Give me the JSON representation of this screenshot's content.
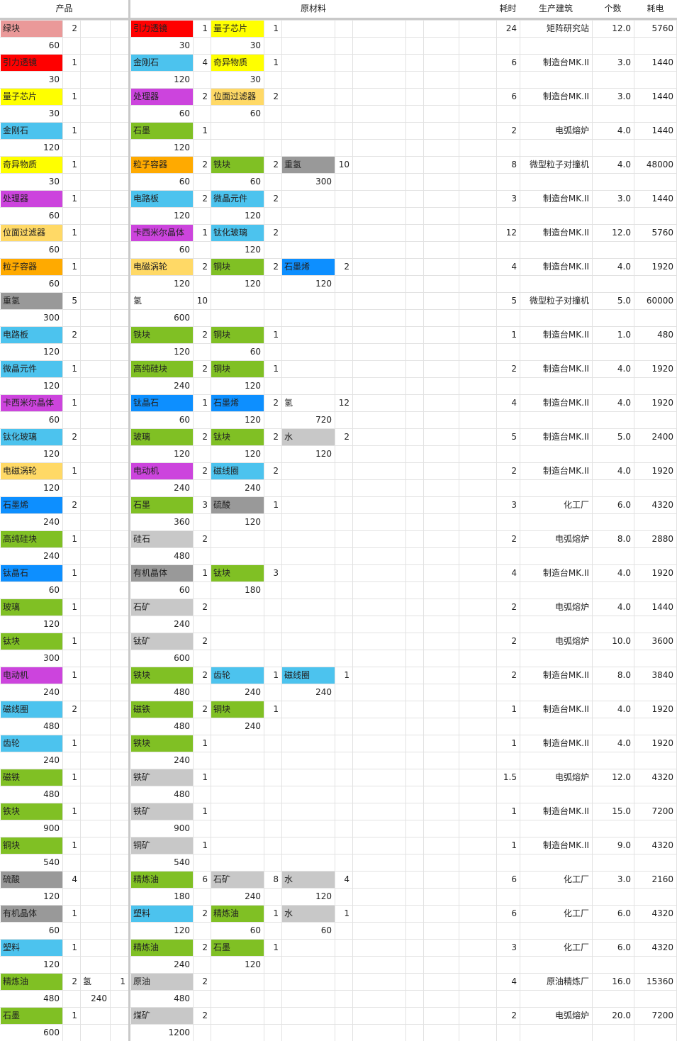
{
  "headers": {
    "product": "产品",
    "materials": "原材料",
    "time": "耗时",
    "building": "生产建筑",
    "count": "个数",
    "power": "耗电"
  },
  "colors": {
    "pink": "#ea9999",
    "red": "#ff0000",
    "yellow": "#ffff00",
    "blue": "#4cc3ee",
    "violet": "#cc44dd",
    "green": "#80c024",
    "orange": "#ffaa00",
    "dgray": "#999999",
    "lgray": "#c8c8c8",
    "cream": "#ffd966",
    "azure": "#0d8fff",
    "white": "#ffffff"
  },
  "rows": [
    {
      "p": {
        "n": "绿块",
        "q": "2",
        "r": "60",
        "c": "pink"
      },
      "p2": null,
      "m": [
        {
          "n": "引力透镜",
          "q": "1",
          "r": "30",
          "c": "red"
        },
        {
          "n": "量子芯片",
          "q": "1",
          "r": "30",
          "c": "yellow"
        }
      ],
      "t": "24",
      "b": "矩阵研究站",
      "k": "12.0",
      "e": "5760"
    },
    {
      "p": {
        "n": "引力透镜",
        "q": "1",
        "r": "30",
        "c": "red"
      },
      "p2": null,
      "m": [
        {
          "n": "金刚石",
          "q": "4",
          "r": "120",
          "c": "blue"
        },
        {
          "n": "奇异物质",
          "q": "1",
          "r": "30",
          "c": "yellow"
        }
      ],
      "t": "6",
      "b": "制造台MK.II",
      "k": "3.0",
      "e": "1440"
    },
    {
      "p": {
        "n": "量子芯片",
        "q": "1",
        "r": "30",
        "c": "yellow"
      },
      "p2": null,
      "m": [
        {
          "n": "处理器",
          "q": "2",
          "r": "60",
          "c": "violet"
        },
        {
          "n": "位面过滤器",
          "q": "2",
          "r": "60",
          "c": "cream"
        }
      ],
      "t": "6",
      "b": "制造台MK.II",
      "k": "3.0",
      "e": "1440"
    },
    {
      "p": {
        "n": "金刚石",
        "q": "1",
        "r": "120",
        "c": "blue"
      },
      "p2": null,
      "m": [
        {
          "n": "石墨",
          "q": "1",
          "r": "120",
          "c": "green"
        }
      ],
      "t": "2",
      "b": "电弧熔炉",
      "k": "4.0",
      "e": "1440"
    },
    {
      "p": {
        "n": "奇异物质",
        "q": "1",
        "r": "30",
        "c": "yellow"
      },
      "p2": null,
      "m": [
        {
          "n": "粒子容器",
          "q": "2",
          "r": "60",
          "c": "orange"
        },
        {
          "n": "铁块",
          "q": "2",
          "r": "60",
          "c": "green"
        },
        {
          "n": "重氢",
          "q": "10",
          "r": "300",
          "c": "dgray"
        }
      ],
      "t": "8",
      "b": "微型粒子对撞机",
      "k": "4.0",
      "e": "48000"
    },
    {
      "p": {
        "n": "处理器",
        "q": "1",
        "r": "60",
        "c": "violet"
      },
      "p2": null,
      "m": [
        {
          "n": "电路板",
          "q": "2",
          "r": "120",
          "c": "blue"
        },
        {
          "n": "微晶元件",
          "q": "2",
          "r": "120",
          "c": "blue"
        }
      ],
      "t": "3",
      "b": "制造台MK.II",
      "k": "3.0",
      "e": "1440"
    },
    {
      "p": {
        "n": "位面过滤器",
        "q": "1",
        "r": "60",
        "c": "cream"
      },
      "p2": null,
      "m": [
        {
          "n": "卡西米尔晶体",
          "q": "1",
          "r": "60",
          "c": "violet"
        },
        {
          "n": "钛化玻璃",
          "q": "2",
          "r": "120",
          "c": "blue"
        }
      ],
      "t": "12",
      "b": "制造台MK.II",
      "k": "12.0",
      "e": "5760"
    },
    {
      "p": {
        "n": "粒子容器",
        "q": "1",
        "r": "60",
        "c": "orange"
      },
      "p2": null,
      "m": [
        {
          "n": "电磁涡轮",
          "q": "2",
          "r": "120",
          "c": "cream"
        },
        {
          "n": "铜块",
          "q": "2",
          "r": "120",
          "c": "green"
        },
        {
          "n": "石墨烯",
          "q": "2",
          "r": "120",
          "c": "azure"
        }
      ],
      "t": "4",
      "b": "制造台MK.II",
      "k": "4.0",
      "e": "1920"
    },
    {
      "p": {
        "n": "重氢",
        "q": "5",
        "r": "300",
        "c": "dgray"
      },
      "p2": null,
      "m": [
        {
          "n": "氢",
          "q": "10",
          "r": "600",
          "c": "white"
        }
      ],
      "t": "5",
      "b": "微型粒子对撞机",
      "k": "5.0",
      "e": "60000"
    },
    {
      "p": {
        "n": "电路板",
        "q": "2",
        "r": "120",
        "c": "blue"
      },
      "p2": null,
      "m": [
        {
          "n": "铁块",
          "q": "2",
          "r": "120",
          "c": "green"
        },
        {
          "n": "铜块",
          "q": "1",
          "r": "60",
          "c": "green"
        }
      ],
      "t": "1",
      "b": "制造台MK.II",
      "k": "1.0",
      "e": "480"
    },
    {
      "p": {
        "n": "微晶元件",
        "q": "1",
        "r": "120",
        "c": "blue"
      },
      "p2": null,
      "m": [
        {
          "n": "高纯硅块",
          "q": "2",
          "r": "240",
          "c": "green"
        },
        {
          "n": "铜块",
          "q": "1",
          "r": "120",
          "c": "green"
        }
      ],
      "t": "2",
      "b": "制造台MK.II",
      "k": "4.0",
      "e": "1920"
    },
    {
      "p": {
        "n": "卡西米尔晶体",
        "q": "1",
        "r": "60",
        "c": "violet"
      },
      "p2": null,
      "m": [
        {
          "n": "钛晶石",
          "q": "1",
          "r": "60",
          "c": "azure"
        },
        {
          "n": "石墨烯",
          "q": "2",
          "r": "120",
          "c": "azure"
        },
        {
          "n": "氢",
          "q": "12",
          "r": "720",
          "c": "white"
        }
      ],
      "t": "4",
      "b": "制造台MK.II",
      "k": "4.0",
      "e": "1920"
    },
    {
      "p": {
        "n": "钛化玻璃",
        "q": "2",
        "r": "120",
        "c": "blue"
      },
      "p2": null,
      "m": [
        {
          "n": "玻璃",
          "q": "2",
          "r": "120",
          "c": "green"
        },
        {
          "n": "钛块",
          "q": "2",
          "r": "120",
          "c": "green"
        },
        {
          "n": "水",
          "q": "2",
          "r": "120",
          "c": "lgray"
        }
      ],
      "t": "5",
      "b": "制造台MK.II",
      "k": "5.0",
      "e": "2400"
    },
    {
      "p": {
        "n": "电磁涡轮",
        "q": "1",
        "r": "120",
        "c": "cream"
      },
      "p2": null,
      "m": [
        {
          "n": "电动机",
          "q": "2",
          "r": "240",
          "c": "violet"
        },
        {
          "n": "磁线圈",
          "q": "2",
          "r": "240",
          "c": "blue"
        }
      ],
      "t": "2",
      "b": "制造台MK.II",
      "k": "4.0",
      "e": "1920"
    },
    {
      "p": {
        "n": "石墨烯",
        "q": "2",
        "r": "240",
        "c": "azure"
      },
      "p2": null,
      "m": [
        {
          "n": "石墨",
          "q": "3",
          "r": "360",
          "c": "green"
        },
        {
          "n": "硫酸",
          "q": "1",
          "r": "120",
          "c": "dgray"
        }
      ],
      "t": "3",
      "b": "化工厂",
      "k": "6.0",
      "e": "4320"
    },
    {
      "p": {
        "n": "高纯硅块",
        "q": "1",
        "r": "240",
        "c": "green"
      },
      "p2": null,
      "m": [
        {
          "n": "硅石",
          "q": "2",
          "r": "480",
          "c": "lgray"
        }
      ],
      "t": "2",
      "b": "电弧熔炉",
      "k": "8.0",
      "e": "2880"
    },
    {
      "p": {
        "n": "钛晶石",
        "q": "1",
        "r": "60",
        "c": "azure"
      },
      "p2": null,
      "m": [
        {
          "n": "有机晶体",
          "q": "1",
          "r": "60",
          "c": "dgray"
        },
        {
          "n": "钛块",
          "q": "3",
          "r": "180",
          "c": "green"
        }
      ],
      "t": "4",
      "b": "制造台MK.II",
      "k": "4.0",
      "e": "1920"
    },
    {
      "p": {
        "n": "玻璃",
        "q": "1",
        "r": "120",
        "c": "green"
      },
      "p2": null,
      "m": [
        {
          "n": "石矿",
          "q": "2",
          "r": "240",
          "c": "lgray"
        }
      ],
      "t": "2",
      "b": "电弧熔炉",
      "k": "4.0",
      "e": "1440"
    },
    {
      "p": {
        "n": "钛块",
        "q": "1",
        "r": "300",
        "c": "green"
      },
      "p2": null,
      "m": [
        {
          "n": "钛矿",
          "q": "2",
          "r": "600",
          "c": "lgray"
        }
      ],
      "t": "2",
      "b": "电弧熔炉",
      "k": "10.0",
      "e": "3600"
    },
    {
      "p": {
        "n": "电动机",
        "q": "1",
        "r": "240",
        "c": "violet"
      },
      "p2": null,
      "m": [
        {
          "n": "铁块",
          "q": "2",
          "r": "480",
          "c": "green"
        },
        {
          "n": "齿轮",
          "q": "1",
          "r": "240",
          "c": "blue"
        },
        {
          "n": "磁线圈",
          "q": "1",
          "r": "240",
          "c": "blue"
        }
      ],
      "t": "2",
      "b": "制造台MK.II",
      "k": "8.0",
      "e": "3840"
    },
    {
      "p": {
        "n": "磁线圈",
        "q": "2",
        "r": "480",
        "c": "blue"
      },
      "p2": null,
      "m": [
        {
          "n": "磁铁",
          "q": "2",
          "r": "480",
          "c": "green"
        },
        {
          "n": "铜块",
          "q": "1",
          "r": "240",
          "c": "green"
        }
      ],
      "t": "1",
      "b": "制造台MK.II",
      "k": "4.0",
      "e": "1920"
    },
    {
      "p": {
        "n": "齿轮",
        "q": "1",
        "r": "240",
        "c": "blue"
      },
      "p2": null,
      "m": [
        {
          "n": "铁块",
          "q": "1",
          "r": "240",
          "c": "green"
        }
      ],
      "t": "1",
      "b": "制造台MK.II",
      "k": "4.0",
      "e": "1920"
    },
    {
      "p": {
        "n": "磁铁",
        "q": "1",
        "r": "480",
        "c": "green"
      },
      "p2": null,
      "m": [
        {
          "n": "铁矿",
          "q": "1",
          "r": "480",
          "c": "lgray"
        }
      ],
      "t": "1.5",
      "b": "电弧熔炉",
      "k": "12.0",
      "e": "4320"
    },
    {
      "p": {
        "n": "铁块",
        "q": "1",
        "r": "900",
        "c": "green"
      },
      "p2": null,
      "m": [
        {
          "n": "铁矿",
          "q": "1",
          "r": "900",
          "c": "lgray"
        }
      ],
      "t": "1",
      "b": "制造台MK.II",
      "k": "15.0",
      "e": "7200"
    },
    {
      "p": {
        "n": "铜块",
        "q": "1",
        "r": "540",
        "c": "green"
      },
      "p2": null,
      "m": [
        {
          "n": "铜矿",
          "q": "1",
          "r": "540",
          "c": "lgray"
        }
      ],
      "t": "1",
      "b": "制造台MK.II",
      "k": "9.0",
      "e": "4320"
    },
    {
      "p": {
        "n": "硫酸",
        "q": "4",
        "r": "120",
        "c": "dgray"
      },
      "p2": null,
      "m": [
        {
          "n": "精炼油",
          "q": "6",
          "r": "180",
          "c": "green"
        },
        {
          "n": "石矿",
          "q": "8",
          "r": "240",
          "c": "lgray"
        },
        {
          "n": "水",
          "q": "4",
          "r": "120",
          "c": "lgray"
        }
      ],
      "t": "6",
      "b": "化工厂",
      "k": "3.0",
      "e": "2160"
    },
    {
      "p": {
        "n": "有机晶体",
        "q": "1",
        "r": "60",
        "c": "dgray"
      },
      "p2": null,
      "m": [
        {
          "n": "塑料",
          "q": "2",
          "r": "120",
          "c": "blue"
        },
        {
          "n": "精炼油",
          "q": "1",
          "r": "60",
          "c": "green"
        },
        {
          "n": "水",
          "q": "1",
          "r": "60",
          "c": "lgray"
        }
      ],
      "t": "6",
      "b": "化工厂",
      "k": "6.0",
      "e": "4320"
    },
    {
      "p": {
        "n": "塑料",
        "q": "1",
        "r": "120",
        "c": "blue"
      },
      "p2": null,
      "m": [
        {
          "n": "精炼油",
          "q": "2",
          "r": "240",
          "c": "green"
        },
        {
          "n": "石墨",
          "q": "1",
          "r": "120",
          "c": "green"
        }
      ],
      "t": "3",
      "b": "化工厂",
      "k": "6.0",
      "e": "4320"
    },
    {
      "p": {
        "n": "精炼油",
        "q": "2",
        "r": "480",
        "c": "green"
      },
      "p2": {
        "n": "氢",
        "q": "1",
        "r": "240",
        "c": "white"
      },
      "m": [
        {
          "n": "原油",
          "q": "2",
          "r": "480",
          "c": "lgray"
        }
      ],
      "t": "4",
      "b": "原油精炼厂",
      "k": "16.0",
      "e": "15360"
    },
    {
      "p": {
        "n": "石墨",
        "q": "1",
        "r": "600",
        "c": "green"
      },
      "p2": null,
      "m": [
        {
          "n": "煤矿",
          "q": "2",
          "r": "1200",
          "c": "lgray"
        }
      ],
      "t": "2",
      "b": "电弧熔炉",
      "k": "20.0",
      "e": "7200"
    }
  ]
}
